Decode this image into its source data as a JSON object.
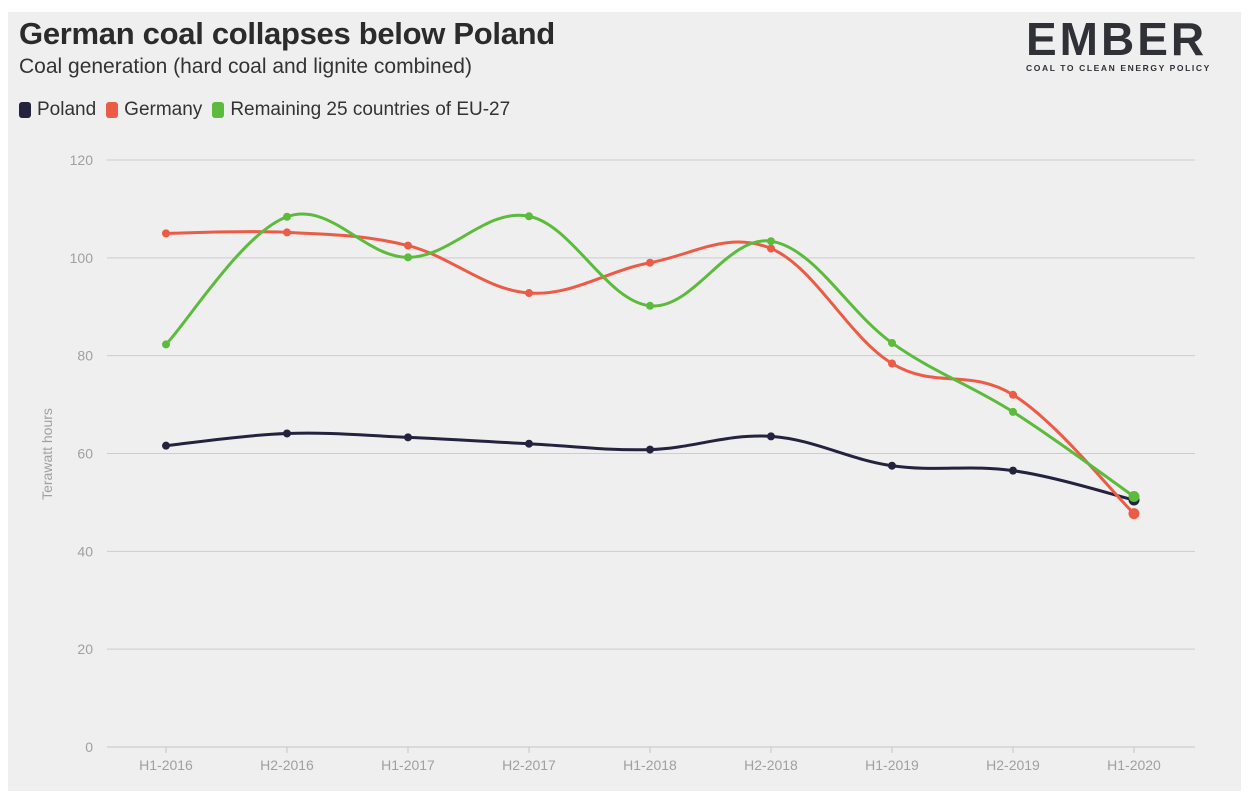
{
  "header": {
    "title": "German coal collapses below Poland",
    "subtitle": "Coal generation (hard coal and lignite combined)"
  },
  "logo": {
    "wordmark": "EMBER",
    "tagline": "COAL TO CLEAN ENERGY POLICY"
  },
  "chart_data": {
    "type": "line",
    "title": "German coal collapses below Poland",
    "subtitle": "Coal generation (hard coal and lignite combined)",
    "xlabel": "",
    "ylabel": "Terawatt hours",
    "ylim": [
      0,
      120
    ],
    "yticks": [
      0,
      20,
      40,
      60,
      80,
      100,
      120
    ],
    "grid": true,
    "legend_position": "top-left",
    "categories": [
      "H1-2016",
      "H2-2016",
      "H1-2017",
      "H2-2017",
      "H1-2018",
      "H2-2018",
      "H1-2019",
      "H2-2019",
      "H1-2020"
    ],
    "series": [
      {
        "name": "Poland",
        "color": "#23233f",
        "values": [
          61.6,
          64.1,
          63.3,
          62.0,
          60.8,
          63.5,
          57.5,
          56.5,
          50.5
        ]
      },
      {
        "name": "Germany",
        "color": "#ec5b46",
        "values": [
          105.0,
          105.2,
          102.5,
          92.8,
          99.0,
          101.9,
          78.4,
          72.0,
          47.7
        ]
      },
      {
        "name": "Remaining 25 countries of EU-27",
        "color": "#5cbb3c",
        "values": [
          82.3,
          108.4,
          100.1,
          108.5,
          90.2,
          103.4,
          82.6,
          68.5,
          51.2
        ]
      }
    ]
  }
}
